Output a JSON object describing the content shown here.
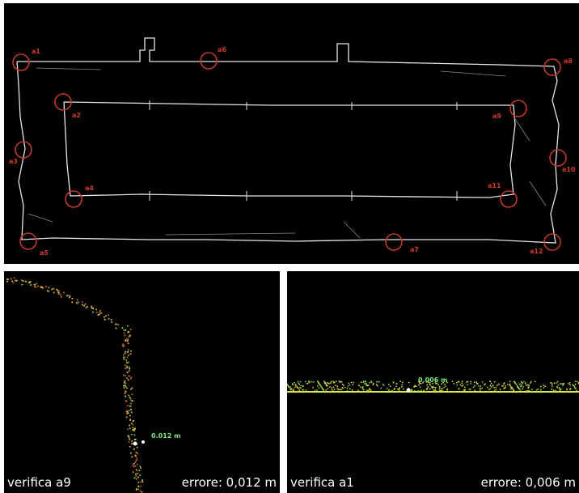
{
  "colors": {
    "marker": "#c0392b",
    "label": "#d23a2a",
    "wall": "#e6e6e6",
    "measure": "#7ee87e",
    "caption": "#ffffff",
    "background": "#000000"
  },
  "plan": {
    "markers": [
      {
        "id": "a1",
        "label": "a1"
      },
      {
        "id": "a2",
        "label": "a2"
      },
      {
        "id": "a3",
        "label": "a3"
      },
      {
        "id": "a4",
        "label": "a4"
      },
      {
        "id": "a5",
        "label": "a5"
      },
      {
        "id": "a6",
        "label": "a6"
      },
      {
        "id": "a7",
        "label": "a7"
      },
      {
        "id": "a8",
        "label": "a8"
      },
      {
        "id": "a9",
        "label": "a9"
      },
      {
        "id": "a10",
        "label": "a10"
      },
      {
        "id": "a11",
        "label": "a11"
      },
      {
        "id": "a12",
        "label": "a12"
      }
    ]
  },
  "detail_a9": {
    "caption_left": "verifica a9",
    "caption_right": "errore: 0,012 m",
    "measure_label": "0.012 m"
  },
  "detail_a1": {
    "caption_left": "verifica a1",
    "caption_right": "errore: 0,006 m",
    "measure_label": "0.006 m"
  }
}
